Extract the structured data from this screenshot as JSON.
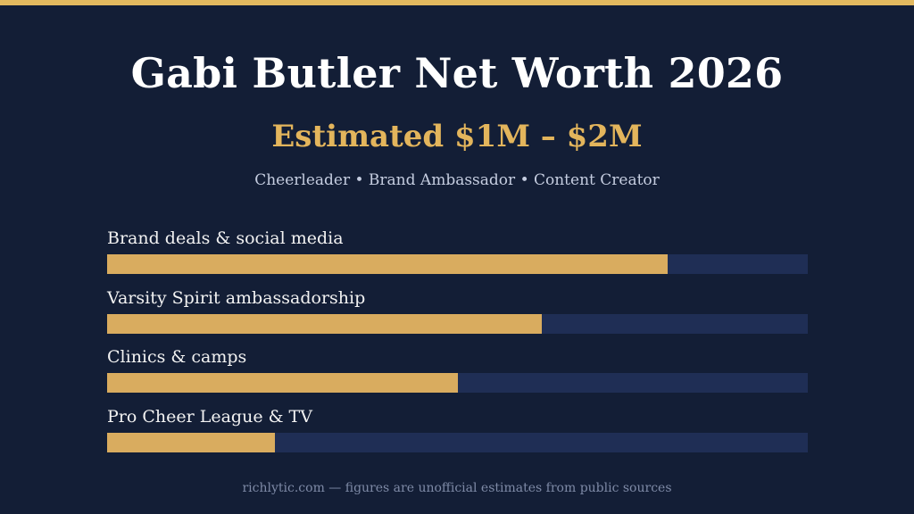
{
  "colors": {
    "background": "#131e36",
    "accent": "#e3b95f",
    "bar_fill": "#d9ac5f",
    "bar_track": "#1f2e55",
    "title": "#ffffff"
  },
  "header": {
    "title": "Gabi Butler Net Worth 2026",
    "subtitle": "Estimated $1M – $2M",
    "tagline": "Cheerleader • Brand Ambassador • Content Creator"
  },
  "chart_data": {
    "type": "bar",
    "orientation": "horizontal",
    "categories": [
      "Brand deals & social media",
      "Varsity Spirit ambassadorship",
      "Clinics & camps",
      "Pro Cheer League & TV"
    ],
    "values": [
      0.8,
      0.62,
      0.5,
      0.24
    ],
    "value_scale": "fraction of full bar",
    "xlim": [
      0,
      1
    ],
    "grid": false,
    "legend": "none"
  },
  "footer": {
    "text": "richlytic.com — figures are unofficial estimates from public sources"
  }
}
